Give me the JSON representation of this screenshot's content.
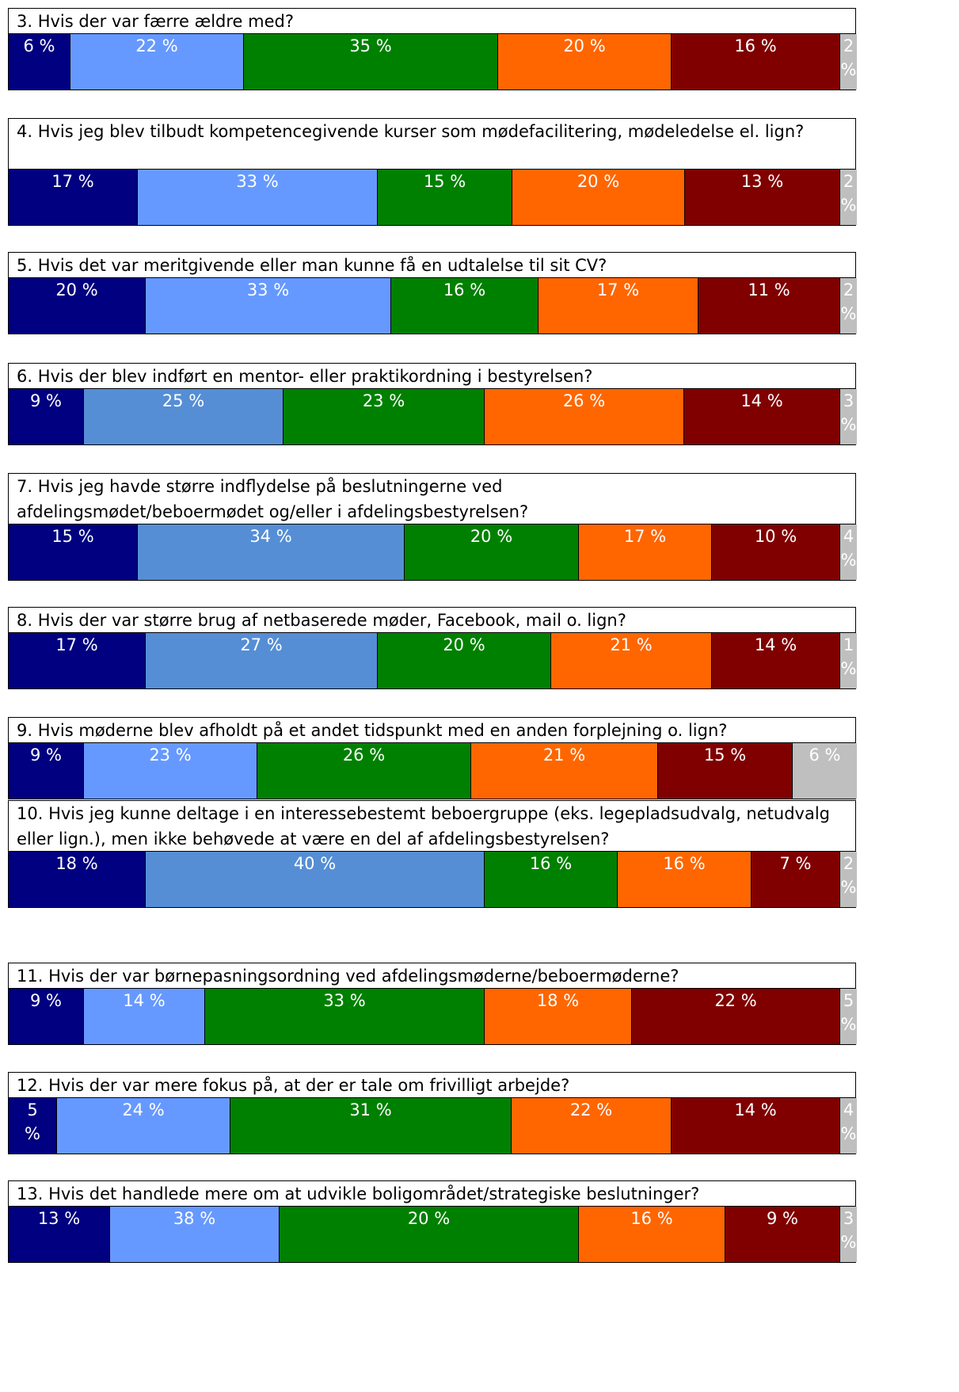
{
  "chart_data": [
    {
      "type": "bar",
      "stacked": true,
      "orientation": "horizontal",
      "title": "3. Hvis der var færre ældre med?",
      "values": [
        6,
        22,
        35,
        20,
        16,
        2
      ],
      "labels": [
        "6 %",
        "22 %",
        "35 %",
        "20 %",
        "16 %",
        "2 %"
      ],
      "colors": [
        "#000080",
        "#6699FF",
        "#008000",
        "#FF6600",
        "#800000",
        "#BFBFBF"
      ]
    },
    {
      "type": "bar",
      "stacked": true,
      "orientation": "horizontal",
      "title": "4. Hvis jeg blev tilbudt kompetencegivende kurser som mødefacilitering, mødeledelse el. lign?",
      "values": [
        17,
        33,
        15,
        20,
        13,
        2
      ],
      "labels": [
        "17 %",
        "33 %",
        "15 %",
        "20 %",
        "13 %",
        "2 %"
      ],
      "colors": [
        "#000080",
        "#6699FF",
        "#008000",
        "#FF6600",
        "#800000",
        "#BFBFBF"
      ]
    },
    {
      "type": "bar",
      "stacked": true,
      "orientation": "horizontal",
      "title": "5. Hvis det var meritgivende eller man kunne få en udtalelse til sit CV?",
      "values": [
        20,
        33,
        16,
        17,
        11,
        2
      ],
      "labels": [
        "20 %",
        "33 %",
        "16 %",
        "17 %",
        "11 %",
        "2 %"
      ],
      "colors": [
        "#000080",
        "#6699FF",
        "#008000",
        "#FF6600",
        "#800000",
        "#BFBFBF"
      ]
    },
    {
      "type": "bar",
      "stacked": true,
      "orientation": "horizontal",
      "title": "6. Hvis der blev indført en mentor- eller praktikordning i bestyrelsen?",
      "values": [
        9,
        25,
        23,
        26,
        14,
        3
      ],
      "labels": [
        "9 %",
        "25 %",
        "23 %",
        "26 %",
        "14 %",
        "3 %"
      ],
      "colors": [
        "#000080",
        "#558ED5",
        "#008000",
        "#FF6600",
        "#800000",
        "#BFBFBF"
      ]
    },
    {
      "type": "bar",
      "stacked": true,
      "orientation": "horizontal",
      "title": "7. Hvis jeg havde større indflydelse på beslutningerne ved afdelingsmødet/beboermødet og/eller i afdelingsbestyrelsen?",
      "values": [
        15,
        34,
        20,
        17,
        10,
        4
      ],
      "labels": [
        "15 %",
        "34 %",
        "20 %",
        "17 %",
        "10 %",
        "4 %"
      ],
      "colors": [
        "#000080",
        "#558ED5",
        "#008000",
        "#FF6600",
        "#800000",
        "#BFBFBF"
      ]
    },
    {
      "type": "bar",
      "stacked": true,
      "orientation": "horizontal",
      "title": "8. Hvis der var større brug af netbaserede møder, Facebook, mail o. lign?",
      "values": [
        17,
        27,
        20,
        21,
        14,
        1
      ],
      "labels": [
        "17 %",
        "27 %",
        "20 %",
        "21 %",
        "14 %",
        "1 %"
      ],
      "colors": [
        "#000080",
        "#558ED5",
        "#008000",
        "#FF6600",
        "#800000",
        "#BFBFBF"
      ]
    },
    {
      "type": "bar",
      "stacked": true,
      "orientation": "horizontal",
      "title": "9. Hvis møderne blev afholdt på et andet tidspunkt med en anden forplejning o. lign?",
      "values": [
        9,
        23,
        26,
        21,
        15,
        6
      ],
      "labels": [
        "9 %",
        "23 %",
        "26 %",
        "21 %",
        "15 %",
        "6 %"
      ],
      "colors": [
        "#000080",
        "#6699FF",
        "#008000",
        "#FF6600",
        "#800000",
        "#BFBFBF"
      ]
    },
    {
      "type": "bar",
      "stacked": true,
      "orientation": "horizontal",
      "title": "10. Hvis jeg kunne deltage i en interessebestemt beboergruppe (eks. legepladsudvalg, netudvalg eller lign.), men ikke behøvede at være en del af afdelingsbestyrelsen?",
      "values": [
        18,
        40,
        16,
        16,
        7,
        2
      ],
      "labels": [
        "18 %",
        "40 %",
        "16 %",
        "16 %",
        "7 %",
        "2 %"
      ],
      "colors": [
        "#000080",
        "#558ED5",
        "#008000",
        "#FF6600",
        "#800000",
        "#BFBFBF"
      ]
    },
    {
      "type": "bar",
      "stacked": true,
      "orientation": "horizontal",
      "title": "11. Hvis der var børnepasningsordning ved afdelingsmøderne/beboermøderne?",
      "values": [
        9,
        14,
        33,
        18,
        22,
        5
      ],
      "labels": [
        "9 %",
        "14 %",
        "33 %",
        "18 %",
        "22 %",
        "5 %"
      ],
      "colors": [
        "#000080",
        "#6699FF",
        "#008000",
        "#FF6600",
        "#800000",
        "#BFBFBF"
      ]
    },
    {
      "type": "bar",
      "stacked": true,
      "orientation": "horizontal",
      "title": "12. Hvis der var mere fokus på, at der er tale om frivilligt arbejde?",
      "values": [
        5,
        24,
        31,
        22,
        14,
        4
      ],
      "labels": [
        "5 %",
        "24 %",
        "31 %",
        "22 %",
        "14 %",
        "4 %"
      ],
      "colors": [
        "#000080",
        "#6699FF",
        "#008000",
        "#FF6600",
        "#800000",
        "#BFBFBF"
      ]
    },
    {
      "type": "bar",
      "stacked": true,
      "orientation": "horizontal",
      "title": "13. Hvis det handlede mere om at udvikle boligområdet/strategiske beslutninger?",
      "values": [
        13,
        38,
        20,
        16,
        9,
        3
      ],
      "labels": [
        "13 %",
        "38 %",
        "20 %",
        "16 %",
        "9 %",
        "3 %"
      ],
      "colors": [
        "#000080",
        "#6699FF",
        "#008000",
        "#FF6600",
        "#800000",
        "#BFBFBF"
      ]
    }
  ]
}
